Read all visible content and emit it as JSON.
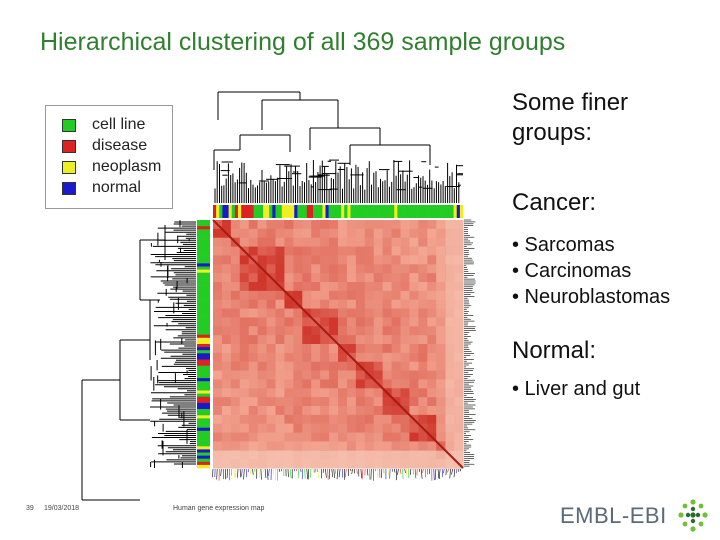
{
  "title": "Hierarchical clustering of all 369 sample groups",
  "legend": [
    {
      "label": "cell line",
      "color": "#22cc22"
    },
    {
      "label": "disease",
      "color": "#dd2222"
    },
    {
      "label": "neoplasm",
      "color": "#eeee22"
    },
    {
      "label": "normal",
      "color": "#1a1acc"
    }
  ],
  "side": {
    "intro": "Some finer groups:",
    "cancer_heading": "Cancer:",
    "cancer_items": [
      "• Sarcomas",
      "• Carcinomas",
      "• Neuroblastomas"
    ],
    "normal_heading": "Normal:",
    "normal_items": [
      "• Liver and gut"
    ]
  },
  "footer": {
    "slide_number": "39",
    "date": "19/03/2018",
    "caption": "Human gene expression map",
    "logo_text": "EMBL-EBI"
  },
  "colors": {
    "title": "#2f7f2f",
    "heatmap_base": "#f0836e",
    "heatmap_dark": "#d8322a"
  },
  "chart_data": {
    "type": "heatmap",
    "title": "Hierarchical clustering of all 369 sample groups",
    "n_samples": 369,
    "annotation_categories": [
      "cell line",
      "disease",
      "neoplasm",
      "normal"
    ],
    "note": "symmetric similarity heatmap with dendrograms on top and left and sample-type color bars"
  }
}
